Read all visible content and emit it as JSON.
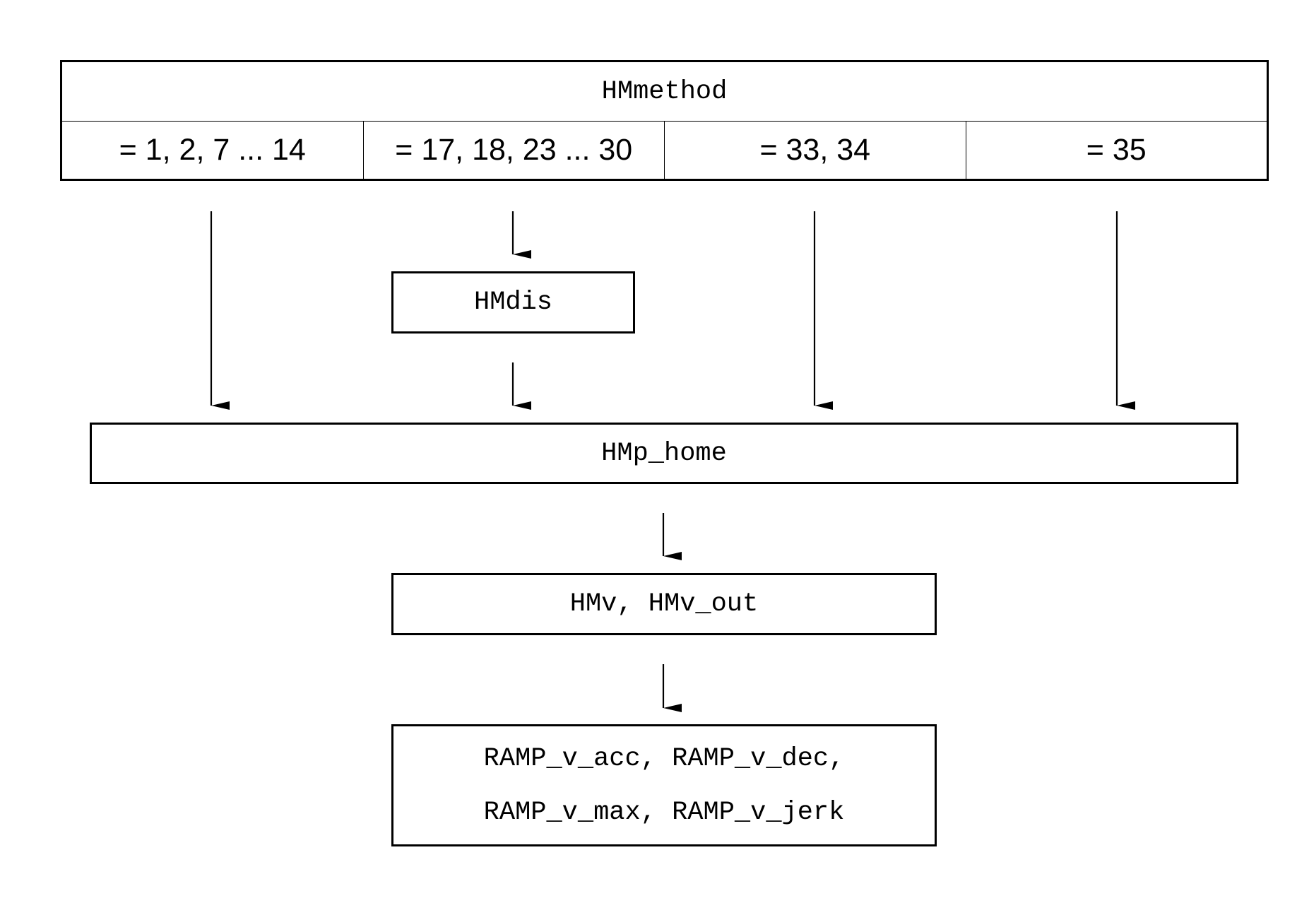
{
  "diagram": {
    "method_table": {
      "header": "HMmethod",
      "cases": [
        "= 1, 2, 7 ... 14",
        "= 17, 18, 23 ... 30",
        "= 33, 34",
        "= 35"
      ]
    },
    "nodes": {
      "hmdis": "HMdis",
      "hmp_home": "HMp_home",
      "hmv": "HMv, HMv_out",
      "ramp": [
        "RAMP_v_acc, RAMP_v_dec,",
        "RAMP_v_max, RAMP_v_jerk"
      ]
    }
  }
}
